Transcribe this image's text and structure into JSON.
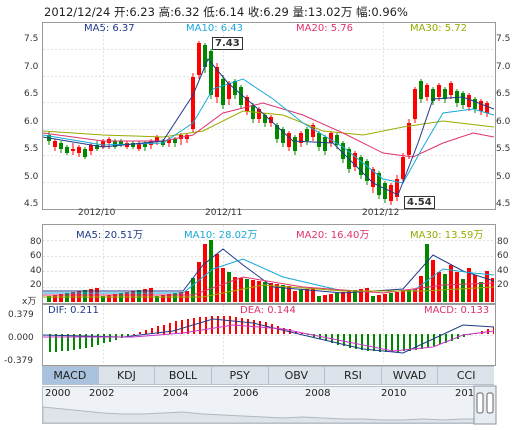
{
  "header": {
    "date": "2012/12/24",
    "open_label": "开:",
    "open": "6.23",
    "high_label": "高:",
    "high": "6.32",
    "low_label": "低:",
    "low": "6.14",
    "close_label": "收:",
    "close": "6.29",
    "volume_label": "量:",
    "volume": "13.02万",
    "change_label": "幅:",
    "change": "0.96%"
  },
  "price_panel": {
    "ma5": "MA5: 6.37",
    "ma10": "MA10: 6.43",
    "ma20": "MA20: 5.76",
    "ma30": "MA30: 5.72",
    "y_ticks": [
      "7.5",
      "7.0",
      "6.5",
      "6.0",
      "5.5",
      "5.0",
      "4.5"
    ],
    "x_labels": [
      "2012/10",
      "2012/11",
      "2012/12"
    ],
    "high_marker": "7.43",
    "low_marker": "4.54"
  },
  "volume_panel": {
    "unit": "x万",
    "ma5": "MA5: 20.51万",
    "ma10": "MA10: 28.02万",
    "ma20": "MA20: 16.40万",
    "ma30": "MA30: 13.59万",
    "y_ticks": [
      "80",
      "60",
      "40",
      "20"
    ]
  },
  "macd_panel": {
    "dif": "DIF: 0.211",
    "dea": "DEA: 0.144",
    "macd": "MACD: 0.133",
    "y_ticks": [
      "0.379",
      "0.000",
      "-0.379"
    ]
  },
  "tabs": [
    "MACD",
    "KDJ",
    "BOLL",
    "PSY",
    "OBV",
    "RSI",
    "WVAD",
    "CCI"
  ],
  "active_tab": "MACD",
  "timeline_years": [
    "2000",
    "2002",
    "2004",
    "2006",
    "2008",
    "2010",
    "2012"
  ],
  "colors": {
    "up": "#ff0000",
    "down": "#008800",
    "ma5": "#1f3a8a",
    "ma10": "#17a9d9",
    "ma20": "#e0336b",
    "ma30": "#9aaa00"
  }
}
